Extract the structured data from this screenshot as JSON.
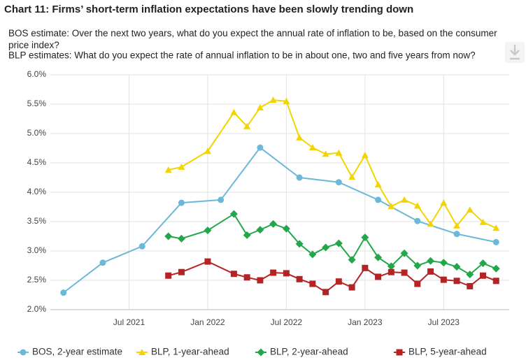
{
  "chart_data": {
    "type": "line",
    "title": "Chart 11: Firms’ short-term inflation expectations have been slowly trending down",
    "subtitle": [
      "BOS estimate: Over the next two years, what do you expect the annual rate of inflation to be, based on the consumer price index?",
      "BLP estimates: What do you expect the rate of annual inflation to be in about one, two and five years from now?"
    ],
    "xlim": [
      "2021-01",
      "2023-12"
    ],
    "xticks": [
      {
        "value": "2021-07",
        "label": "Jul 2021"
      },
      {
        "value": "2022-01",
        "label": "Jan 2022"
      },
      {
        "value": "2022-07",
        "label": "Jul 2022"
      },
      {
        "value": "2023-01",
        "label": "Jan 2023"
      },
      {
        "value": "2023-07",
        "label": "Jul 2023"
      }
    ],
    "ylim": [
      2,
      6
    ],
    "yticks": [
      {
        "value": 2,
        "label": "2.0%"
      },
      {
        "value": 2.5,
        "label": "2.5%"
      },
      {
        "value": 3,
        "label": "3.0%"
      },
      {
        "value": 3.5,
        "label": "3.5%"
      },
      {
        "value": 4,
        "label": "4.0%"
      },
      {
        "value": 4.5,
        "label": "4.5%"
      },
      {
        "value": 5,
        "label": "5.0%"
      },
      {
        "value": 5.5,
        "label": "5.5%"
      },
      {
        "value": 6,
        "label": "6.0%"
      }
    ],
    "grid": true,
    "legend": "bottom",
    "series": [
      {
        "name": "BOS, 2-year estimate",
        "color": "#6cb8d8",
        "marker": "circle",
        "x": [
          "2021-02",
          "2021-05",
          "2021-08",
          "2021-11",
          "2022-02",
          "2022-05",
          "2022-08",
          "2022-11",
          "2023-02",
          "2023-05",
          "2023-08",
          "2023-11"
        ],
        "values": [
          2.29,
          2.8,
          3.08,
          3.82,
          3.87,
          4.76,
          4.25,
          4.17,
          3.87,
          3.51,
          3.29,
          3.15
        ]
      },
      {
        "name": "BLP, 1-year-ahead",
        "color": "#f2d500",
        "marker": "triangle",
        "x": [
          "2021-10",
          "2021-11",
          "2022-01",
          "2022-03",
          "2022-04",
          "2022-05",
          "2022-06",
          "2022-07",
          "2022-08",
          "2022-09",
          "2022-10",
          "2022-11",
          "2022-12",
          "2023-01",
          "2023-02",
          "2023-03",
          "2023-04",
          "2023-05",
          "2023-06",
          "2023-07",
          "2023-08",
          "2023-09",
          "2023-10",
          "2023-11"
        ],
        "values": [
          4.38,
          4.43,
          4.7,
          5.36,
          5.12,
          5.44,
          5.57,
          5.55,
          4.93,
          4.76,
          4.65,
          4.67,
          4.26,
          4.63,
          4.13,
          3.76,
          3.87,
          3.77,
          3.46,
          3.82,
          3.43,
          3.7,
          3.49,
          3.39
        ]
      },
      {
        "name": "BLP, 2-year-ahead",
        "color": "#22a84a",
        "marker": "diamond",
        "x": [
          "2021-10",
          "2021-11",
          "2022-01",
          "2022-03",
          "2022-04",
          "2022-05",
          "2022-06",
          "2022-07",
          "2022-08",
          "2022-09",
          "2022-10",
          "2022-11",
          "2022-12",
          "2023-01",
          "2023-02",
          "2023-03",
          "2023-04",
          "2023-05",
          "2023-06",
          "2023-07",
          "2023-08",
          "2023-09",
          "2023-10",
          "2023-11"
        ],
        "values": [
          3.25,
          3.21,
          3.35,
          3.63,
          3.27,
          3.36,
          3.46,
          3.38,
          3.12,
          2.94,
          3.06,
          3.13,
          2.85,
          3.23,
          2.89,
          2.74,
          2.96,
          2.75,
          2.83,
          2.8,
          2.73,
          2.6,
          2.79,
          2.7
        ]
      },
      {
        "name": "BLP, 5-year-ahead",
        "color": "#b52424",
        "marker": "square",
        "x": [
          "2021-10",
          "2021-11",
          "2022-01",
          "2022-03",
          "2022-04",
          "2022-05",
          "2022-06",
          "2022-07",
          "2022-08",
          "2022-09",
          "2022-10",
          "2022-11",
          "2022-12",
          "2023-01",
          "2023-02",
          "2023-03",
          "2023-04",
          "2023-05",
          "2023-06",
          "2023-07",
          "2023-08",
          "2023-09",
          "2023-10",
          "2023-11"
        ],
        "values": [
          2.58,
          2.64,
          2.82,
          2.61,
          2.55,
          2.5,
          2.63,
          2.62,
          2.52,
          2.44,
          2.3,
          2.48,
          2.38,
          2.71,
          2.56,
          2.64,
          2.63,
          2.44,
          2.65,
          2.51,
          2.49,
          2.4,
          2.58,
          2.49
        ]
      }
    ]
  }
}
